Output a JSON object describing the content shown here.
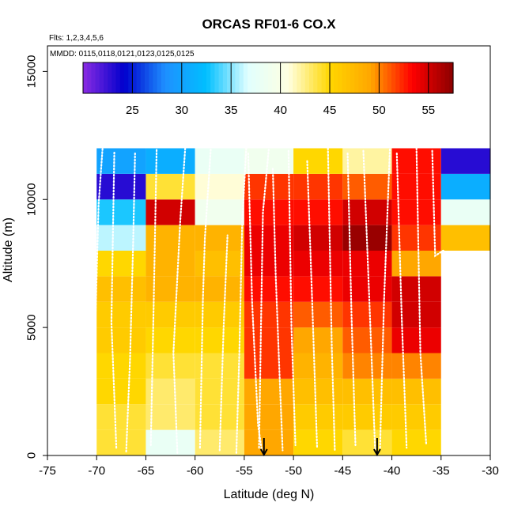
{
  "chart_data": {
    "type": "heatmap",
    "title": "ORCAS RF01-6 CO.X",
    "flights_label": "Flts: 1,2,3,4,5,6",
    "mmdd_label": "MMDD: 0115,0118,0121,0123,0125,0125",
    "xlabel": "Latitude (deg N)",
    "ylabel": "Altitude (m)",
    "xlim": [
      -75,
      -30
    ],
    "ylim": [
      0,
      16000
    ],
    "x_ticks": [
      -75,
      -70,
      -65,
      -60,
      -55,
      -50,
      -45,
      -40,
      -35,
      -30
    ],
    "y_ticks": [
      0,
      5000,
      10000,
      15000
    ],
    "colorbar": {
      "range": [
        20,
        57.5
      ],
      "ticks": [
        25,
        30,
        35,
        40,
        45,
        50,
        55
      ],
      "colors": [
        "#8a2be2",
        "#0000cd",
        "#1e90ff",
        "#00bfff",
        "#e0ffff",
        "#ffffe0",
        "#ffd700",
        "#ffa500",
        "#ff0000",
        "#8b0000"
      ]
    },
    "lat_edges": [
      -70,
      -65,
      -60,
      -55,
      -50,
      -45,
      -40,
      -35,
      -30
    ],
    "alt_edges": [
      0,
      1000,
      2000,
      3000,
      4000,
      5000,
      6000,
      7000,
      8000,
      9000,
      10000,
      11000,
      12000
    ],
    "cell_values": [
      [
        44,
        38,
        43,
        49,
        45,
        44,
        45,
        null
      ],
      [
        44,
        43,
        44,
        49,
        46,
        46,
        46,
        null
      ],
      [
        45,
        43,
        44,
        49,
        47,
        47,
        47,
        null
      ],
      [
        45,
        44,
        44,
        52,
        48,
        50,
        50,
        null
      ],
      [
        46,
        45,
        45,
        52,
        49,
        51,
        54,
        null
      ],
      [
        46,
        46,
        46,
        52,
        51,
        52,
        55,
        null
      ],
      [
        47,
        48,
        48,
        53,
        53,
        54,
        55,
        null
      ],
      [
        45,
        48,
        47,
        54,
        54,
        54,
        49,
        null
      ],
      [
        36,
        48,
        48,
        54,
        55,
        57,
        52,
        47
      ],
      [
        33,
        55,
        39,
        53,
        53,
        55,
        53,
        38
      ],
      [
        23,
        44,
        41,
        52,
        52,
        51,
        53,
        31
      ],
      [
        30,
        31,
        38,
        39,
        45,
        42,
        53,
        23
      ]
    ],
    "marker_lats": [
      -53,
      -41.5
    ],
    "flight_tracks": [
      [
        [
          -70.5,
          200
        ],
        [
          -70.2,
          4200
        ],
        [
          -69.8,
          9800
        ],
        [
          -69.4,
          12000
        ]
      ],
      [
        [
          -68,
          300
        ],
        [
          -68.5,
          5200
        ],
        [
          -68.2,
          11900
        ]
      ],
      [
        [
          -67,
          150
        ],
        [
          -66.6,
          3800
        ],
        [
          -66.3,
          8200
        ],
        [
          -66.1,
          11800
        ]
      ],
      [
        [
          -64.5,
          400
        ],
        [
          -64.2,
          6000
        ],
        [
          -63.9,
          12000
        ]
      ],
      [
        [
          -61.8,
          100
        ],
        [
          -62.2,
          4000
        ],
        [
          -61.5,
          9200
        ],
        [
          -61,
          12000
        ]
      ],
      [
        [
          -59.5,
          300
        ],
        [
          -59.2,
          6100
        ],
        [
          -59,
          8500
        ],
        [
          -58.4,
          12000
        ]
      ],
      [
        [
          -57.5,
          200
        ],
        [
          -57.1,
          5000
        ],
        [
          -56.7,
          8600
        ]
      ],
      [
        [
          -55.8,
          100
        ],
        [
          -55.5,
          4000
        ],
        [
          -55.2,
          9200
        ],
        [
          -54.8,
          12000
        ]
      ],
      [
        [
          -54.6,
          11800
        ],
        [
          -54.2,
          6000
        ],
        [
          -53.6,
          1200
        ],
        [
          -53.2,
          150
        ]
      ],
      [
        [
          -53.5,
          300
        ],
        [
          -53.3,
          5000
        ],
        [
          -53.1,
          9500
        ],
        [
          -52.5,
          12000
        ]
      ],
      [
        [
          -52.1,
          11200
        ],
        [
          -51.8,
          7000
        ],
        [
          -51.4,
          3000
        ],
        [
          -51.1,
          200
        ]
      ],
      [
        [
          -50.5,
          11900
        ],
        [
          -50.2,
          5000
        ],
        [
          -49.8,
          400
        ]
      ],
      [
        [
          -48.6,
          11500
        ],
        [
          -48.1,
          6000
        ],
        [
          -47.6,
          300
        ]
      ],
      [
        [
          -46.5,
          12000
        ],
        [
          -46.1,
          4200
        ],
        [
          -45.8,
          200
        ]
      ],
      [
        [
          -44.5,
          11800
        ],
        [
          -44.1,
          5500
        ],
        [
          -43.7,
          400
        ]
      ],
      [
        [
          -42.9,
          11900
        ],
        [
          -42.3,
          6200
        ],
        [
          -41.7,
          200
        ]
      ],
      [
        [
          -41.2,
          300
        ],
        [
          -40.8,
          6000
        ],
        [
          -40.2,
          12000
        ]
      ],
      [
        [
          -39.5,
          11800
        ],
        [
          -39,
          5400
        ],
        [
          -38.5,
          300
        ]
      ],
      [
        [
          -37.5,
          12000
        ],
        [
          -37.1,
          4000
        ],
        [
          -36.5,
          400
        ]
      ],
      [
        [
          -35.9,
          11900
        ],
        [
          -35.6,
          7800
        ],
        [
          -34.8,
          8000
        ],
        [
          -33.6,
          7800
        ]
      ]
    ]
  }
}
